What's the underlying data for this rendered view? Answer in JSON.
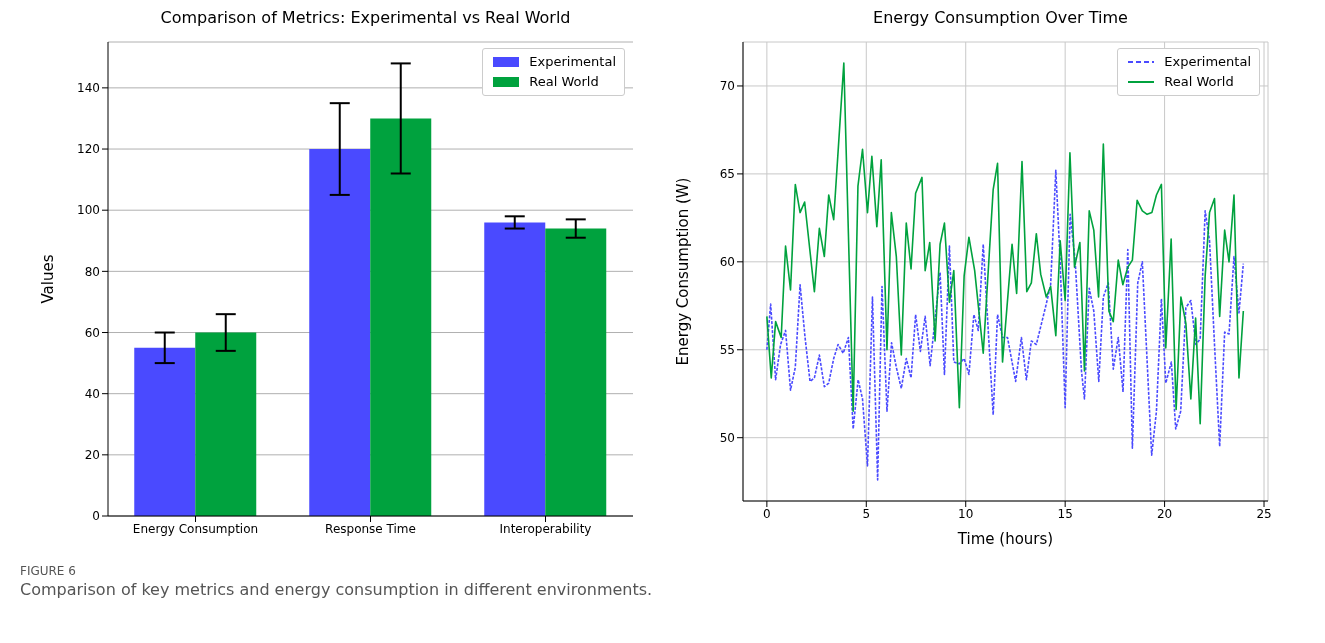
{
  "chart_data": [
    {
      "type": "bar",
      "title": "Comparison of Metrics: Experimental vs Real World",
      "ylabel": "Values",
      "categories": [
        "Energy Consumption",
        "Response Time",
        "Interoperability"
      ],
      "series": [
        {
          "name": "Experimental",
          "color": "#4a4aff",
          "values": [
            55,
            120,
            96
          ],
          "errors": [
            5,
            15,
            2
          ]
        },
        {
          "name": "Real World",
          "color": "#00a23e",
          "values": [
            60,
            130,
            94
          ],
          "errors": [
            6,
            18,
            3
          ]
        }
      ],
      "ylim": [
        0,
        155
      ],
      "yticks": [
        0,
        20,
        40,
        60,
        80,
        100,
        120,
        140
      ],
      "grid": "y",
      "legend": "top right",
      "annotations": [
        "FIGURE 6",
        "Comparison of key metrics and energy consumption in different environments."
      ]
    },
    {
      "type": "line",
      "title": "Energy Consumption Over Time",
      "xlabel": "Time (hours)",
      "ylabel": "Energy Consumption (W)",
      "series": [
        {
          "name": "Experimental",
          "color": "#4a4aff",
          "line_style": "dashed",
          "x": [
            0,
            0.19,
            0.44,
            0.69,
            0.94,
            1.19,
            1.43,
            1.67,
            1.92,
            2.17,
            2.39,
            2.64,
            2.89,
            3.11,
            3.36,
            3.58,
            3.84,
            4.1,
            4.34,
            4.59,
            4.81,
            5.06,
            5.31,
            5.57,
            5.79,
            6.04,
            6.27,
            6.51,
            6.76,
            7.01,
            7.25,
            7.48,
            7.72,
            7.96,
            8.21,
            8.71,
            8.93,
            9.18,
            9.4,
            9.68,
            9.92,
            10.16,
            10.41,
            10.63,
            10.88,
            11.38,
            11.6,
            11.85,
            12.1,
            12.51,
            12.8,
            13.05,
            13.3,
            13.55,
            14.05,
            14.27,
            14.53,
            14.75,
            15.0,
            15.25,
            15.5,
            15.82,
            15.97,
            16.21,
            16.44,
            16.69,
            16.92,
            17.17,
            17.42,
            17.67,
            17.91,
            18.15,
            18.38,
            18.65,
            18.88,
            19.35,
            19.59,
            19.84,
            20.06,
            20.34,
            20.56,
            20.81,
            21.07,
            21.32,
            21.57,
            21.79,
            22.04,
            22.26,
            22.51,
            22.77,
            23.02,
            23.24,
            23.49,
            23.74,
            23.96
          ],
          "values": [
            55.0,
            57.6,
            53.3,
            55.3,
            56.1,
            52.7,
            54.0,
            58.7,
            55.7,
            53.2,
            53.4,
            54.7,
            52.9,
            53.1,
            54.5,
            55.3,
            54.8,
            55.7,
            50.5,
            53.3,
            52.2,
            48.4,
            58.0,
            47.6,
            58.6,
            51.5,
            55.4,
            54.0,
            52.8,
            54.5,
            53.4,
            57.0,
            54.9,
            56.9,
            54.1,
            59.4,
            53.6,
            60.9,
            54.3,
            54.2,
            54.5,
            53.6,
            57.0,
            56.1,
            61.0,
            51.3,
            57.0,
            55.7,
            55.7,
            53.2,
            55.7,
            53.3,
            55.5,
            55.3,
            57.6,
            58.7,
            65.2,
            60.0,
            51.7,
            62.7,
            60.1,
            53.8,
            52.2,
            58.5,
            57.2,
            53.2,
            58.0,
            58.8,
            53.9,
            55.7,
            52.6,
            60.7,
            49.4,
            58.8,
            60.0,
            49.0,
            51.5,
            57.9,
            53.1,
            54.3,
            50.5,
            51.5,
            57.4,
            57.8,
            55.3,
            55.6,
            62.9,
            61.2,
            55.3,
            49.5,
            56.0,
            55.9,
            60.3,
            57.1,
            59.9
          ]
        },
        {
          "name": "Real World",
          "color": "#00a23e",
          "line_style": "solid",
          "x": [
            0,
            0.22,
            0.44,
            0.72,
            0.94,
            1.19,
            1.43,
            1.67,
            1.9,
            2.39,
            2.64,
            2.89,
            3.11,
            3.36,
            3.87,
            4.34,
            4.58,
            4.81,
            5.06,
            5.28,
            5.53,
            5.75,
            6.04,
            6.26,
            6.51,
            6.76,
            7.01,
            7.25,
            7.48,
            7.8,
            7.96,
            8.19,
            8.46,
            8.71,
            8.93,
            9.18,
            9.4,
            9.68,
            9.92,
            10.16,
            10.45,
            10.88,
            11.38,
            11.6,
            11.85,
            12.33,
            12.56,
            12.83,
            13.07,
            13.3,
            13.55,
            13.77,
            14.05,
            14.27,
            14.53,
            14.75,
            15.0,
            15.24,
            15.47,
            15.74,
            15.97,
            16.21,
            16.44,
            16.68,
            16.92,
            17.2,
            17.42,
            17.67,
            17.9,
            18.15,
            18.38,
            18.62,
            18.88,
            19.12,
            19.36,
            19.59,
            19.84,
            20.06,
            20.33,
            20.58,
            20.82,
            21.07,
            21.32,
            21.56,
            21.79,
            22.04,
            22.26,
            22.51,
            22.77,
            23.02,
            23.24,
            23.49,
            23.74,
            23.96
          ],
          "values": [
            56.9,
            53.4,
            56.6,
            55.7,
            60.9,
            58.4,
            64.4,
            62.8,
            63.4,
            58.3,
            61.9,
            60.3,
            63.8,
            62.4,
            71.3,
            51.5,
            64.3,
            66.4,
            62.8,
            66.0,
            62.0,
            65.8,
            55.0,
            62.8,
            60.3,
            54.7,
            62.2,
            59.6,
            63.9,
            64.8,
            59.5,
            61.1,
            55.5,
            61.0,
            62.2,
            57.7,
            59.5,
            51.7,
            59.2,
            61.4,
            59.5,
            54.8,
            64.1,
            65.6,
            54.3,
            61.0,
            58.2,
            65.7,
            58.3,
            58.8,
            61.6,
            59.3,
            58.0,
            58.6,
            55.8,
            61.2,
            57.8,
            66.2,
            59.7,
            61.1,
            53.8,
            62.9,
            61.8,
            58.0,
            66.7,
            57.2,
            56.6,
            60.1,
            58.7,
            59.7,
            60.1,
            63.5,
            62.9,
            62.7,
            62.8,
            63.8,
            64.4,
            55.1,
            61.3,
            51.6,
            58.0,
            56.5,
            52.2,
            56.8,
            50.8,
            59.2,
            62.8,
            63.6,
            56.9,
            61.8,
            60.0,
            63.8,
            53.4,
            57.2
          ]
        }
      ],
      "xlim": [
        -1.2,
        25.2
      ],
      "xticks": [
        0,
        5,
        10,
        15,
        20,
        25
      ],
      "ylim": [
        46.4,
        72.5
      ],
      "yticks": [
        50,
        55,
        60,
        65,
        70
      ],
      "grid": true,
      "legend": "top right"
    }
  ]
}
